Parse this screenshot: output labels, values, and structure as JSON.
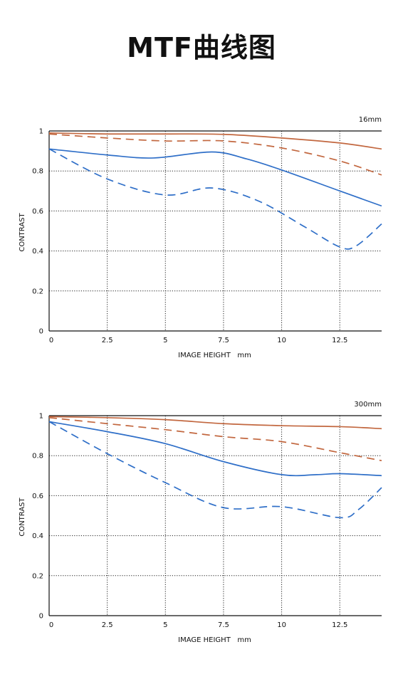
{
  "page": {
    "title": "MTF曲线图"
  },
  "colors": {
    "sagittal": "#c2673f",
    "meridional": "#2f6fc8",
    "grid": "#222222"
  },
  "chart_data": [
    {
      "type": "line",
      "focal_label": "16mm",
      "xlabel": "IMAGE HEIGHT   mm",
      "ylabel": "CONTRAST",
      "xlim": [
        0,
        14.3
      ],
      "ylim": [
        0,
        1
      ],
      "xticks": [
        0,
        2.5,
        5,
        7.5,
        10,
        12.5
      ],
      "xtick_labels": [
        "0",
        "2.5",
        "5",
        "7.5",
        "10",
        "12.5"
      ],
      "yticks": [
        0,
        0.2,
        0.4,
        0.6,
        0.8,
        1
      ],
      "ytick_labels": [
        "0",
        "0.2",
        "0.4",
        "0.6",
        "0.8",
        "1"
      ],
      "grid": true,
      "series": [
        {
          "color": "#c2673f",
          "style": "solid",
          "x": [
            0,
            2.5,
            5,
            7.5,
            10,
            12.5,
            14.3
          ],
          "y": [
            0.99,
            0.985,
            0.985,
            0.983,
            0.965,
            0.94,
            0.91
          ]
        },
        {
          "color": "#c2673f",
          "style": "dashed",
          "x": [
            0,
            2.5,
            5,
            7.5,
            10,
            12.5,
            14.3
          ],
          "y": [
            0.985,
            0.965,
            0.95,
            0.95,
            0.915,
            0.85,
            0.78
          ]
        },
        {
          "color": "#2f6fc8",
          "style": "solid",
          "x": [
            0,
            2.5,
            4.5,
            7,
            8.5,
            10,
            12.5,
            14.3
          ],
          "y": [
            0.91,
            0.88,
            0.865,
            0.895,
            0.86,
            0.805,
            0.7,
            0.625
          ]
        },
        {
          "color": "#2f6fc8",
          "style": "dashed",
          "x": [
            0,
            2.5,
            5,
            7,
            9,
            11,
            12.5,
            13.2,
            14.3
          ],
          "y": [
            0.91,
            0.76,
            0.68,
            0.715,
            0.65,
            0.52,
            0.42,
            0.425,
            0.535
          ]
        }
      ]
    },
    {
      "type": "line",
      "focal_label": "300mm",
      "xlabel": "IMAGE HEIGHT   mm",
      "ylabel": "CONTRAST",
      "xlim": [
        0,
        14.3
      ],
      "ylim": [
        0,
        1
      ],
      "xticks": [
        0,
        2.5,
        5,
        7.5,
        10,
        12.5
      ],
      "xtick_labels": [
        "0",
        "2.5",
        "5",
        "7.5",
        "10",
        "12.5"
      ],
      "yticks": [
        0,
        0.2,
        0.4,
        0.6,
        0.8,
        1
      ],
      "ytick_labels": [
        "0",
        "0.2",
        "0.4",
        "0.6",
        "0.8",
        "1"
      ],
      "grid": true,
      "series": [
        {
          "color": "#c2673f",
          "style": "solid",
          "x": [
            0,
            2.5,
            5,
            7.5,
            10,
            12.5,
            14.3
          ],
          "y": [
            0.995,
            0.99,
            0.98,
            0.96,
            0.95,
            0.945,
            0.935
          ]
        },
        {
          "color": "#c2673f",
          "style": "dashed",
          "x": [
            0,
            2.5,
            5,
            7.5,
            10,
            12.5,
            14.3
          ],
          "y": [
            0.99,
            0.96,
            0.93,
            0.895,
            0.87,
            0.815,
            0.775
          ]
        },
        {
          "color": "#2f6fc8",
          "style": "solid",
          "x": [
            0,
            2.5,
            5,
            7.5,
            10,
            11.5,
            12.5,
            14.3
          ],
          "y": [
            0.97,
            0.92,
            0.86,
            0.77,
            0.705,
            0.705,
            0.71,
            0.7
          ]
        },
        {
          "color": "#2f6fc8",
          "style": "dashed",
          "x": [
            0,
            2.5,
            5,
            7.5,
            10,
            12.5,
            13.3,
            14.3
          ],
          "y": [
            0.97,
            0.81,
            0.665,
            0.54,
            0.545,
            0.49,
            0.53,
            0.64
          ]
        }
      ]
    }
  ]
}
